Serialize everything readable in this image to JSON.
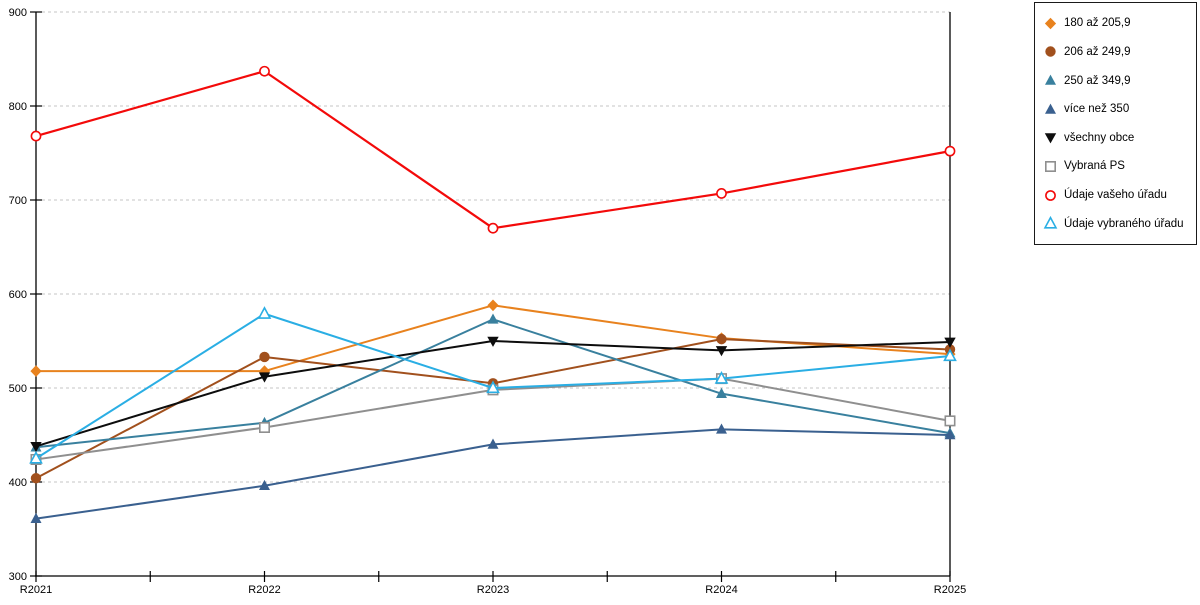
{
  "chart_data": {
    "type": "line",
    "title": "",
    "xlabel": "",
    "ylabel": "",
    "categories": [
      "R2021",
      "R2022",
      "R2023",
      "R2024",
      "R2025"
    ],
    "ylim": [
      300,
      900
    ],
    "ytick_step": 100,
    "y_ticks": [
      "300",
      "400",
      "500",
      "600",
      "700",
      "800",
      "900"
    ],
    "grid": "horizontal-dashed",
    "gridline_color": "#c4c4c4",
    "axis_color": "#000000",
    "legend_position": "right",
    "x_minor_ticks": true,
    "series": [
      {
        "name": "180 až 205,9",
        "color": "#E8821E",
        "marker": "diamond",
        "marker_fill": "solid",
        "values": [
          518,
          518,
          588,
          553,
          536
        ]
      },
      {
        "name": "206 až 249,9",
        "color": "#A1501D",
        "marker": "circle",
        "marker_fill": "solid",
        "values": [
          404,
          533,
          505,
          552,
          541
        ]
      },
      {
        "name": "250 až 349,9",
        "color": "#39809E",
        "marker": "triangle-up",
        "marker_fill": "solid",
        "values": [
          437,
          463,
          573,
          494,
          452
        ]
      },
      {
        "name": "více než 350",
        "color": "#3A608F",
        "marker": "triangle-up",
        "marker_fill": "solid",
        "values": [
          361,
          396,
          440,
          456,
          450
        ]
      },
      {
        "name": "všechny obce",
        "color": "#0d0d0d",
        "marker": "triangle-down",
        "marker_fill": "solid",
        "values": [
          438,
          512,
          550,
          540,
          549
        ]
      },
      {
        "name": "Vybraná PS",
        "color": "#8f8f8f",
        "marker": "square",
        "marker_fill": "open",
        "values": [
          424,
          458,
          498,
          510,
          465
        ]
      },
      {
        "name": "Údaje vašeho úřadu",
        "color": "#F30A0A",
        "marker": "circle",
        "marker_fill": "open",
        "values": [
          768,
          837,
          670,
          707,
          752
        ]
      },
      {
        "name": "Údaje vybraného úřadu",
        "color": "#2AAEE4",
        "marker": "triangle-up",
        "marker_fill": "open",
        "values": [
          425,
          579,
          500,
          510,
          534
        ]
      }
    ]
  }
}
